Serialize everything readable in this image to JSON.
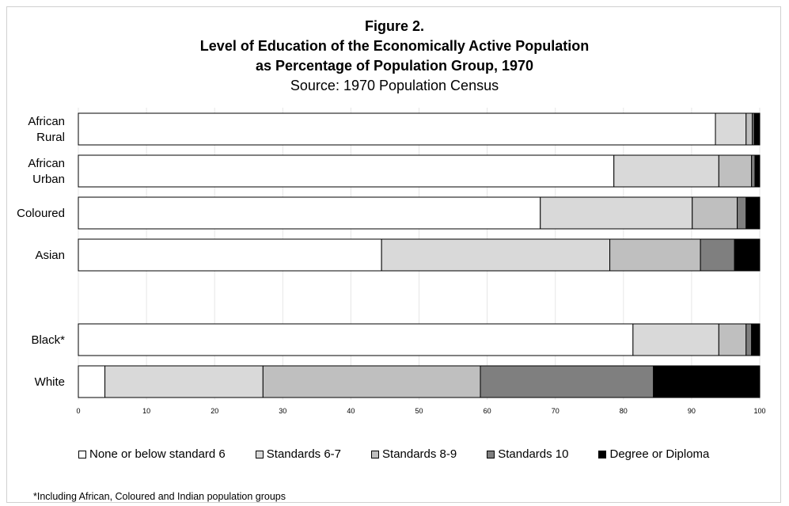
{
  "chart_data": {
    "type": "bar",
    "orientation": "horizontal",
    "stacked": true,
    "title_lines": [
      "Figure 2.",
      "Level of Education of the Economically Active Population",
      "as Percentage of Population Group, 1970"
    ],
    "subtitle": "Source: 1970 Population Census",
    "categories": [
      "African Rural",
      "African Urban",
      "Coloured",
      "Asian",
      "",
      "Black*",
      "White"
    ],
    "category_lines": [
      [
        "African",
        "Rural"
      ],
      [
        "African",
        "Urban"
      ],
      [
        "Coloured"
      ],
      [
        "Asian"
      ],
      [],
      [
        "Black*"
      ],
      [
        "White"
      ]
    ],
    "series": [
      {
        "name": "None or below standard 6",
        "color": "#ffffff",
        "values": [
          93.5,
          78.6,
          67.8,
          44.5,
          null,
          81.4,
          3.9
        ]
      },
      {
        "name": "Standards 6-7",
        "color": "#d9d9d9",
        "values": [
          4.5,
          15.4,
          22.3,
          33.5,
          null,
          12.6,
          23.2
        ]
      },
      {
        "name": "Standards 8-9",
        "color": "#bfbfbf",
        "values": [
          0.9,
          4.8,
          6.6,
          13.3,
          null,
          4.0,
          31.9
        ]
      },
      {
        "name": "Standards 10",
        "color": "#7f7f7f",
        "values": [
          0.3,
          0.5,
          1.3,
          5.0,
          null,
          0.8,
          25.4
        ]
      },
      {
        "name": "Degree or Diploma",
        "color": "#000000",
        "values": [
          0.8,
          0.7,
          2.0,
          3.7,
          null,
          1.2,
          15.6
        ]
      }
    ],
    "xlim": [
      0,
      100
    ],
    "xticks": [
      "0",
      "10",
      "20",
      "30",
      "40",
      "50",
      "60",
      "70",
      "80",
      "90",
      "100"
    ],
    "grid": true,
    "legend_position": "bottom",
    "footnote": "*Including African, Coloured and Indian population groups"
  }
}
